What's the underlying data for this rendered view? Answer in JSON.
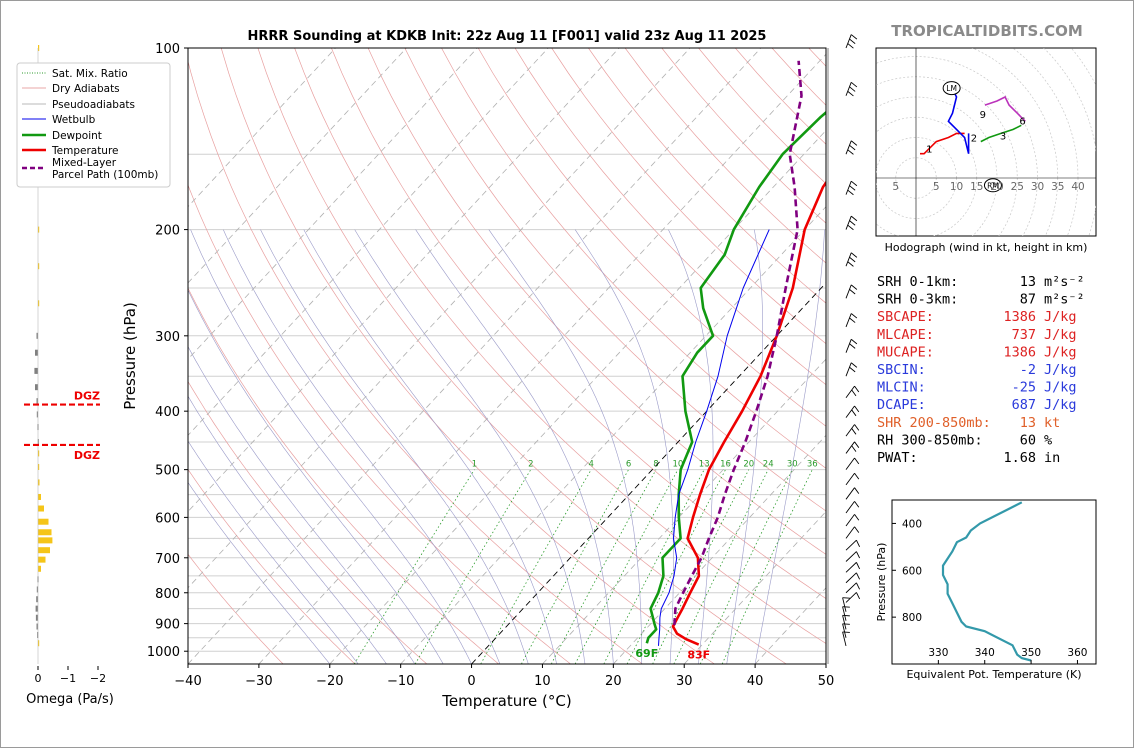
{
  "title": "HRRR Sounding at KDKB Init: 22z Aug 11 [F001] valid 23z Aug 11 2025",
  "brand": "TROPICALTIDBITS.COM",
  "chart_data": {
    "type": "line",
    "subtype": "skew-T log-P",
    "x_label": "Temperature (°C)",
    "y_label": "Pressure (hPa)",
    "x_ticks": [
      "−40",
      "−30",
      "−20",
      "−10",
      "0",
      "10",
      "20",
      "30",
      "40",
      "50"
    ],
    "y_ticks": [
      "100",
      "200",
      "300",
      "400",
      "500",
      "600",
      "700",
      "800",
      "900",
      "1000"
    ],
    "xlim": [
      -40,
      50
    ],
    "ylim_hpa": [
      1050,
      100
    ],
    "y_scale": "log",
    "legend": [
      {
        "label": "Sat. Mix. Ratio",
        "color": "#2a9a2a",
        "style": "dotted"
      },
      {
        "label": "Dry Adiabats",
        "color": "#e08a8a",
        "style": "solid-thin"
      },
      {
        "label": "Pseudoadiabats",
        "color": "#a0a0a0",
        "style": "solid-thin"
      },
      {
        "label": "Wetbulb",
        "color": "#0000ee",
        "style": "solid"
      },
      {
        "label": "Dewpoint",
        "color": "#119911",
        "style": "solid-thick"
      },
      {
        "label": "Temperature",
        "color": "#ee0000",
        "style": "solid-thick"
      },
      {
        "label": "Mixed-Layer\nParcel Path (100mb)",
        "color": "#800080",
        "style": "dashed"
      }
    ],
    "series": [
      {
        "name": "Temperature",
        "color": "#ee0000",
        "points": [
          [
            29.5,
            975
          ],
          [
            27,
            955
          ],
          [
            25,
            935
          ],
          [
            23.5,
            910
          ],
          [
            23,
            880
          ],
          [
            22.5,
            850
          ],
          [
            21.5,
            800
          ],
          [
            20.5,
            750
          ],
          [
            18,
            700
          ],
          [
            14,
            650
          ],
          [
            12,
            600
          ],
          [
            10,
            550
          ],
          [
            8,
            500
          ],
          [
            6.5,
            450
          ],
          [
            5,
            400
          ],
          [
            3,
            350
          ],
          [
            0,
            300
          ],
          [
            -4,
            250
          ],
          [
            -10,
            200
          ],
          [
            -13,
            170
          ],
          [
            -14,
            150
          ],
          [
            -13,
            130
          ],
          [
            -9,
            115
          ],
          [
            0,
            100
          ]
        ]
      },
      {
        "name": "Dewpoint",
        "color": "#119911",
        "points": [
          [
            22,
            970
          ],
          [
            21.5,
            950
          ],
          [
            21.5,
            920
          ],
          [
            20.5,
            900
          ],
          [
            18,
            850
          ],
          [
            17,
            800
          ],
          [
            15.5,
            750
          ],
          [
            13,
            700
          ],
          [
            13,
            650
          ],
          [
            10,
            600
          ],
          [
            7,
            550
          ],
          [
            4,
            500
          ],
          [
            2,
            450
          ],
          [
            -3,
            400
          ],
          [
            -8,
            350
          ],
          [
            -9,
            320
          ],
          [
            -9,
            300
          ],
          [
            -14,
            270
          ],
          [
            -17,
            250
          ],
          [
            -18,
            220
          ],
          [
            -20,
            200
          ],
          [
            -22,
            170
          ],
          [
            -23,
            150
          ],
          [
            -22.5,
            130
          ],
          [
            -20,
            100
          ]
        ]
      },
      {
        "name": "Wetbulb",
        "color": "#0000ee",
        "points": [
          [
            24,
            980
          ],
          [
            23,
            950
          ],
          [
            22,
            920
          ],
          [
            20.5,
            880
          ],
          [
            19.5,
            850
          ],
          [
            18.5,
            800
          ],
          [
            17,
            750
          ],
          [
            15,
            700
          ],
          [
            12,
            650
          ],
          [
            9.5,
            600
          ],
          [
            7,
            550
          ],
          [
            5,
            500
          ],
          [
            2.5,
            450
          ],
          [
            0,
            400
          ],
          [
            -3,
            350
          ],
          [
            -7,
            300
          ],
          [
            -11,
            250
          ],
          [
            -15,
            200
          ]
        ]
      },
      {
        "name": "Mixed-Layer Parcel Path (100mb)",
        "color": "#800080",
        "points": [
          [
            23.5,
            905
          ],
          [
            21.5,
            850
          ],
          [
            20.5,
            800
          ],
          [
            19.5,
            750
          ],
          [
            18.5,
            700
          ],
          [
            17,
            650
          ],
          [
            15.5,
            600
          ],
          [
            13.5,
            550
          ],
          [
            11.5,
            500
          ],
          [
            9.5,
            450
          ],
          [
            7,
            400
          ],
          [
            4,
            350
          ],
          [
            0,
            300
          ],
          [
            -5,
            250
          ],
          [
            -11,
            200
          ],
          [
            -17,
            170
          ],
          [
            -22,
            150
          ],
          [
            -28,
            120
          ],
          [
            -33,
            105
          ]
        ]
      }
    ],
    "surface_labels": {
      "dewpoint": "69F",
      "temperature": "83F"
    },
    "mixing_ratio_labels": [
      "1",
      "2",
      "4",
      "6",
      "8",
      "10",
      "13",
      "16",
      "20",
      "24",
      "30",
      "36"
    ],
    "omega": {
      "x_label": "Omega (Pa/s)",
      "x_ticks": [
        "0",
        "−1",
        "−2"
      ],
      "dgz_label": "DGZ",
      "dgz_levels_hpa": [
        390,
        455
      ],
      "bars": [
        {
          "p": 100,
          "v": -0.02,
          "c": "#f5c518"
        },
        {
          "p": 118,
          "v": -0.03,
          "c": "#f5c518"
        },
        {
          "p": 140,
          "v": -0.05,
          "c": "#f5c518"
        },
        {
          "p": 163,
          "v": -0.08,
          "c": "#f5c518"
        },
        {
          "p": 200,
          "v": -0.03,
          "c": "#f5c518"
        },
        {
          "p": 230,
          "v": -0.03,
          "c": "#f5c518"
        },
        {
          "p": 265,
          "v": -0.02,
          "c": "#f5c518"
        },
        {
          "p": 300,
          "v": 0.05,
          "c": "#808080"
        },
        {
          "p": 320,
          "v": 0.1,
          "c": "#808080"
        },
        {
          "p": 343,
          "v": 0.12,
          "c": "#808080"
        },
        {
          "p": 365,
          "v": 0.1,
          "c": "#808080"
        },
        {
          "p": 385,
          "v": 0.05,
          "c": "#808080"
        },
        {
          "p": 405,
          "v": 0.04,
          "c": "#808080"
        },
        {
          "p": 425,
          "v": 0.02,
          "c": "#808080"
        },
        {
          "p": 450,
          "v": 0.01,
          "c": "#808080"
        },
        {
          "p": 470,
          "v": -0.01,
          "c": "#f5c518"
        },
        {
          "p": 495,
          "v": -0.02,
          "c": "#f5c518"
        },
        {
          "p": 525,
          "v": -0.05,
          "c": "#f5c518"
        },
        {
          "p": 555,
          "v": -0.1,
          "c": "#f5c518"
        },
        {
          "p": 580,
          "v": -0.2,
          "c": "#f5c518"
        },
        {
          "p": 610,
          "v": -0.35,
          "c": "#f5c518"
        },
        {
          "p": 635,
          "v": -0.45,
          "c": "#f5c518"
        },
        {
          "p": 655,
          "v": -0.48,
          "c": "#f5c518"
        },
        {
          "p": 680,
          "v": -0.4,
          "c": "#f5c518"
        },
        {
          "p": 705,
          "v": -0.25,
          "c": "#f5c518"
        },
        {
          "p": 730,
          "v": -0.1,
          "c": "#f5c518"
        },
        {
          "p": 760,
          "v": 0.02,
          "c": "#808080"
        },
        {
          "p": 790,
          "v": 0.04,
          "c": "#808080"
        },
        {
          "p": 820,
          "v": 0.06,
          "c": "#808080"
        },
        {
          "p": 850,
          "v": 0.08,
          "c": "#808080"
        },
        {
          "p": 880,
          "v": 0.07,
          "c": "#808080"
        },
        {
          "p": 910,
          "v": 0.05,
          "c": "#808080"
        },
        {
          "p": 940,
          "v": 0.03,
          "c": "#808080"
        },
        {
          "p": 970,
          "v": -0.02,
          "c": "#f5c518"
        }
      ]
    },
    "hodograph": {
      "caption": "Hodograph (wind in kt, height in km)",
      "x_ticks": [
        "5",
        "5",
        "10",
        "15",
        "20",
        "25",
        "30",
        "35",
        "40"
      ],
      "point_labels": [
        "1",
        "2",
        "3",
        "6",
        "9"
      ],
      "storm_motion_labels": [
        "LM",
        "RM"
      ]
    },
    "theta_e": {
      "x_label": "Equivalent Pot. Temperature (K)",
      "y_label": "Pressure (hPa)",
      "x_ticks": [
        "330",
        "340",
        "350",
        "360"
      ],
      "y_ticks": [
        "400",
        "600",
        "800"
      ],
      "points": [
        [
          350,
          985
        ],
        [
          348,
          975
        ],
        [
          347,
          960
        ],
        [
          346,
          920
        ],
        [
          340,
          860
        ],
        [
          336,
          840
        ],
        [
          335,
          820
        ],
        [
          334,
          780
        ],
        [
          333,
          740
        ],
        [
          332,
          700
        ],
        [
          332,
          660
        ],
        [
          331,
          620
        ],
        [
          331,
          580
        ],
        [
          332,
          550
        ],
        [
          333,
          520
        ],
        [
          334,
          480
        ],
        [
          336,
          460
        ],
        [
          337,
          430
        ],
        [
          339,
          400
        ],
        [
          342,
          370
        ],
        [
          345,
          340
        ],
        [
          348,
          310
        ]
      ]
    }
  },
  "stats": [
    {
      "label": "SRH 0-1km:",
      "value": "13",
      "unit": "m²s⁻²",
      "color": "#000000"
    },
    {
      "label": "SRH 0-3km:",
      "value": "87",
      "unit": "m²s⁻²",
      "color": "#000000"
    },
    {
      "label": "SBCAPE:",
      "value": "1386",
      "unit": "J/kg",
      "color": "#dd2222"
    },
    {
      "label": "MLCAPE:",
      "value": "737",
      "unit": "J/kg",
      "color": "#dd2222"
    },
    {
      "label": "MUCAPE:",
      "value": "1386",
      "unit": "J/kg",
      "color": "#dd2222"
    },
    {
      "label": "SBCIN:",
      "value": "-2",
      "unit": "J/kg",
      "color": "#2a3adb"
    },
    {
      "label": "MLCIN:",
      "value": "-25",
      "unit": "J/kg",
      "color": "#2a3adb"
    },
    {
      "label": "DCAPE:",
      "value": "687",
      "unit": "J/kg",
      "color": "#2a3adb"
    },
    {
      "label": "SHR 200-850mb:",
      "value": "13",
      "unit": "kt",
      "color": "#e0602a"
    },
    {
      "label": "RH 300-850mb:",
      "value": "60",
      "unit": "%",
      "color": "#000000"
    },
    {
      "label": "PWAT:",
      "value": "1.68",
      "unit": "in",
      "color": "#000000"
    }
  ]
}
